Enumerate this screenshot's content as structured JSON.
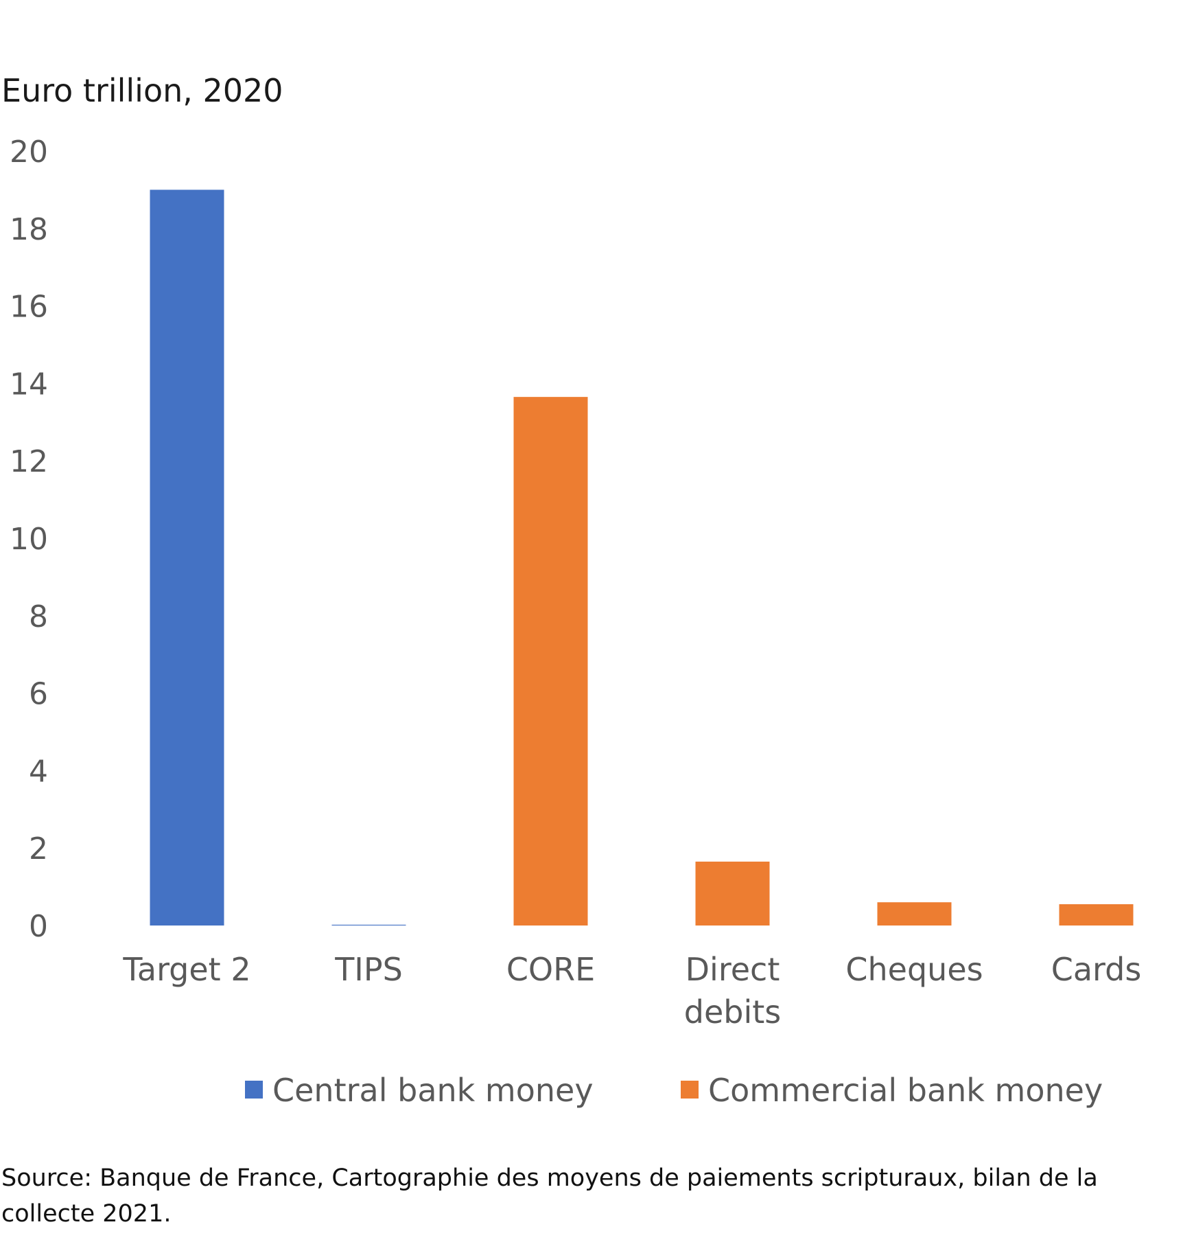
{
  "chart_data": {
    "type": "bar",
    "unit_label": "Euro trillion, 2020",
    "categories": [
      {
        "lines": [
          "Target 2"
        ],
        "value": 19.0,
        "series": 0
      },
      {
        "lines": [
          "TIPS"
        ],
        "value": 0.02,
        "series": 0
      },
      {
        "lines": [
          "CORE"
        ],
        "value": 13.65,
        "series": 1
      },
      {
        "lines": [
          "Direct",
          "debits"
        ],
        "value": 1.65,
        "series": 1
      },
      {
        "lines": [
          "Cheques"
        ],
        "value": 0.6,
        "series": 1
      },
      {
        "lines": [
          "Cards"
        ],
        "value": 0.55,
        "series": 1
      }
    ],
    "series": [
      {
        "name": "Central bank money",
        "color": "#4472C4"
      },
      {
        "name": "Commercial bank money",
        "color": "#ED7D31"
      }
    ],
    "ylim": [
      0,
      20
    ],
    "yticks": [
      0,
      2,
      4,
      6,
      8,
      10,
      12,
      14,
      16,
      18,
      20
    ],
    "grid": false,
    "legend_position": "bottom"
  },
  "source": "Source: Banque de France, Cartographie des moyens de paiements scripturaux, bilan de la collecte 2021."
}
